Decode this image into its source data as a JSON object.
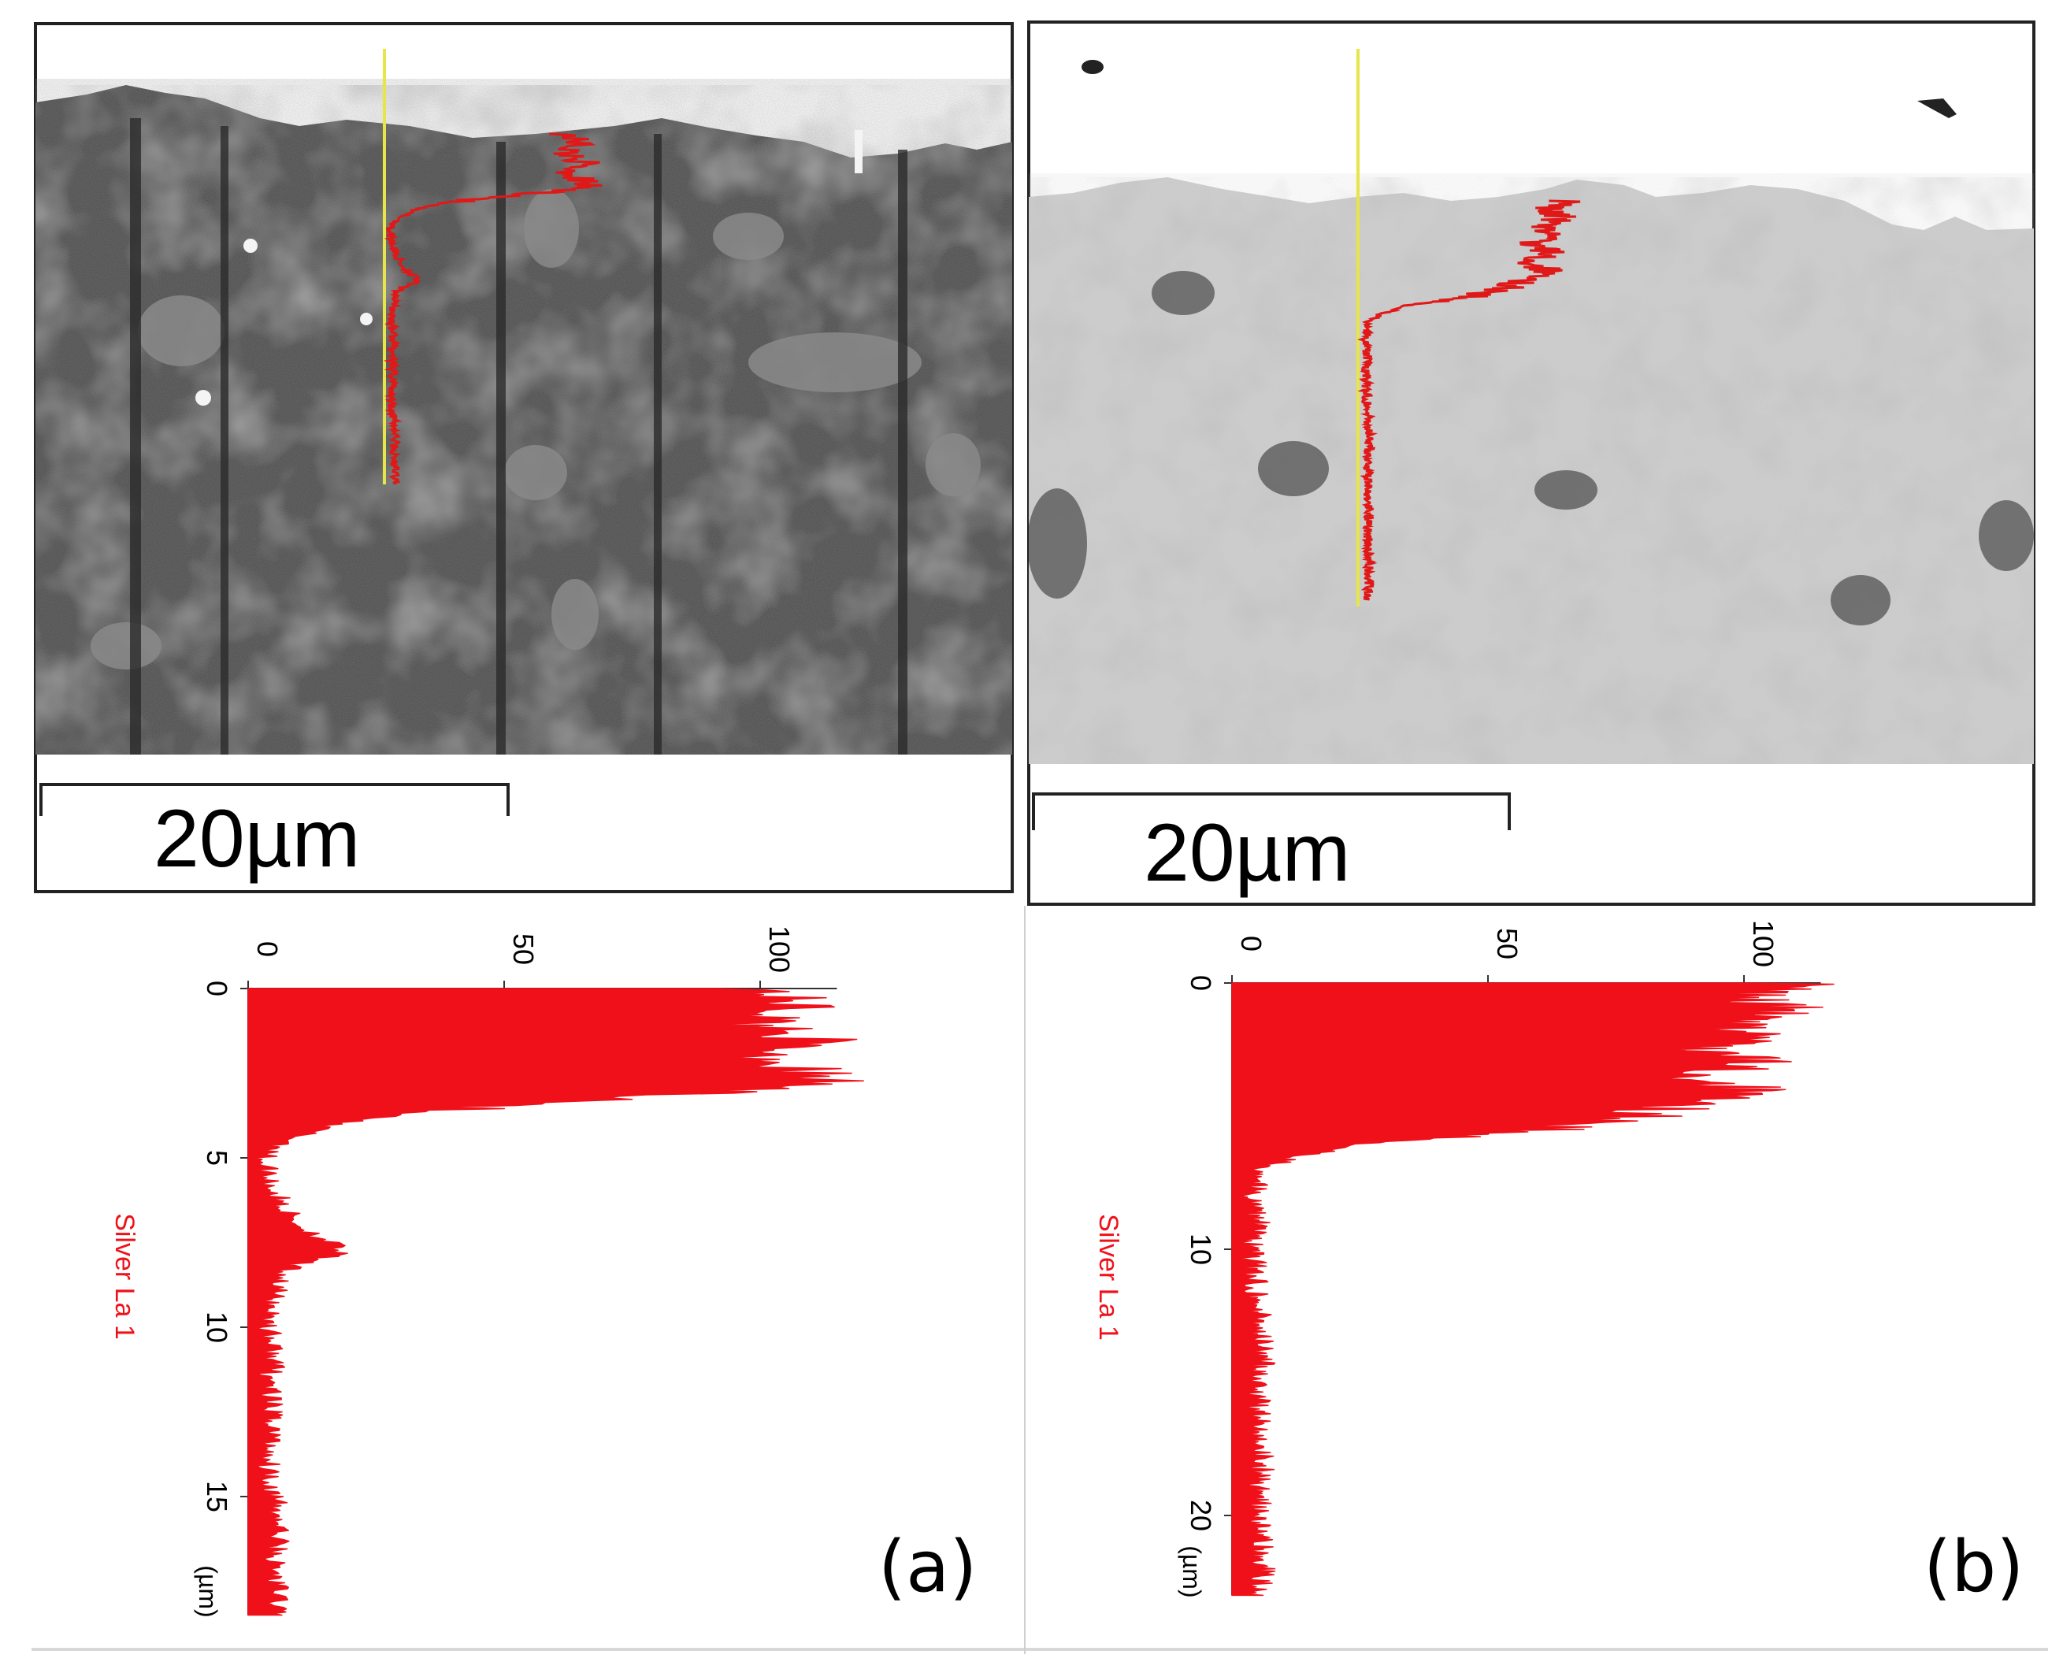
{
  "figure": {
    "panels": [
      {
        "label": "(a)",
        "micrograph": {
          "scale_bar_label": "20µm",
          "tone": "dark"
        },
        "line_scan_overlay": "Silver La 1 line scan"
      },
      {
        "label": "(b)",
        "micrograph": {
          "scale_bar_label": "20µm",
          "tone": "light"
        },
        "line_scan_overlay": "Silver La 1 line scan"
      }
    ]
  },
  "colors": {
    "profile": "#f0101a",
    "scan_line": "#e6e64a",
    "frame": "#222222"
  },
  "chart_data": [
    {
      "type": "area",
      "orientation": "depth-vertical",
      "panel": "(a)",
      "series": [
        {
          "name": "Silver La 1",
          "x_depth_um": [
            0,
            0.5,
            1,
            1.5,
            2,
            2.5,
            2.8,
            3,
            3.3,
            3.6,
            4,
            4.5,
            5,
            5.5,
            6,
            6.5,
            7,
            7.5,
            7.8,
            8.2,
            9,
            10,
            11,
            12,
            13,
            14,
            15,
            16,
            17,
            18
          ],
          "y_intensity": [
            100,
            108,
            100,
            110,
            102,
            109,
            112,
            98,
            70,
            35,
            16,
            8,
            3,
            4,
            5,
            7,
            10,
            16,
            18,
            8,
            5,
            4,
            5,
            4,
            5,
            4,
            5,
            6,
            5,
            6
          ]
        }
      ],
      "legend": [
        "Silver La 1"
      ],
      "x_axis_label": "(µm)",
      "x_ticks": [
        "0",
        "5",
        "10",
        "15"
      ],
      "x_range": [
        0,
        18.5
      ],
      "y_ticks": [
        "0",
        "50",
        "100"
      ],
      "y_range": [
        0,
        115
      ]
    },
    {
      "type": "area",
      "orientation": "depth-vertical",
      "panel": "(b)",
      "series": [
        {
          "name": "Silver La 1",
          "x_depth_um": [
            0,
            0.5,
            1,
            1.5,
            2,
            2.5,
            3,
            3.5,
            4,
            4.5,
            5,
            5.5,
            6,
            6.5,
            7,
            8,
            9,
            10,
            12,
            14,
            16,
            18,
            20,
            22,
            23
          ],
          "y_intensity": [
            110,
            100,
            108,
            95,
            104,
            92,
            102,
            90,
            100,
            88,
            80,
            60,
            28,
            12,
            6,
            4,
            5,
            4,
            5,
            6,
            5,
            6,
            5,
            6,
            5
          ]
        }
      ],
      "legend": [
        "Silver La 1"
      ],
      "x_axis_label": "(µm)",
      "x_ticks": [
        "0",
        "10",
        "20"
      ],
      "x_range": [
        0,
        23
      ],
      "y_ticks": [
        "0",
        "50",
        "100"
      ],
      "y_range": [
        0,
        115
      ]
    }
  ]
}
